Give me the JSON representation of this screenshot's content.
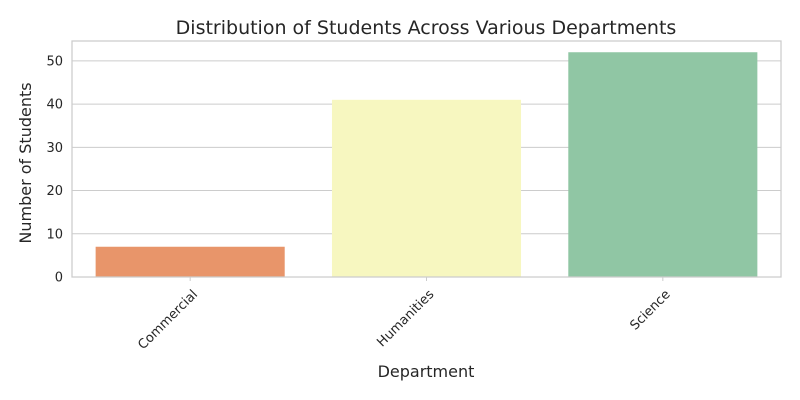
{
  "chart_data": {
    "type": "bar",
    "title": "Distribution of Students Across Various Departments",
    "xlabel": "Department",
    "ylabel": "Number of Students",
    "categories": [
      "Commercial",
      "Humanities",
      "Science"
    ],
    "values": [
      7,
      41,
      52
    ],
    "colors": [
      "#e8956a",
      "#f7f7c0",
      "#90c6a4"
    ],
    "ylim": [
      0,
      54.6
    ],
    "yticks": [
      0,
      10,
      20,
      30,
      40,
      50
    ],
    "grid": true,
    "legend": "none",
    "xtick_rotation_deg": 45
  }
}
